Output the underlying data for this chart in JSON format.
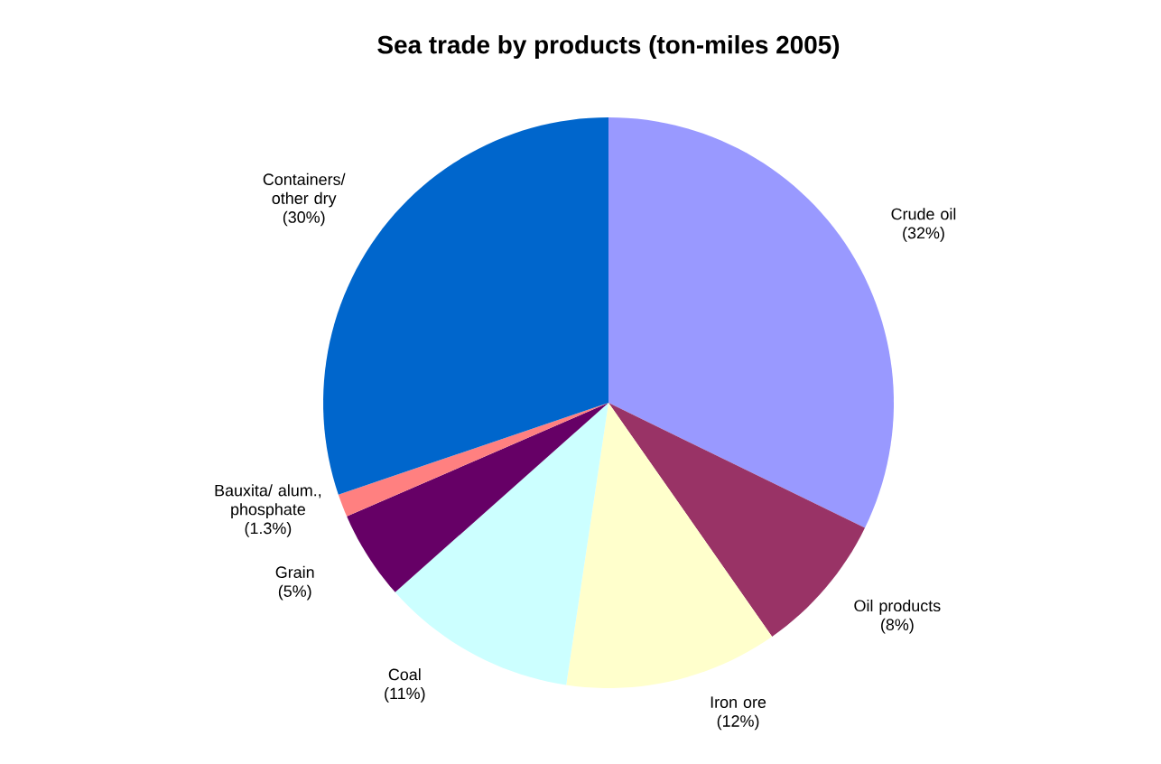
{
  "chart_data": {
    "type": "pie",
    "title": "Sea trade by products (ton-miles 2005)",
    "categories": [
      "Crude oil",
      "Oil products",
      "Iron ore",
      "Coal",
      "Grain",
      "Bauxita/ alum., phosphate",
      "Containers/ other dry"
    ],
    "values": [
      32,
      8,
      12,
      11,
      5,
      1.3,
      30
    ],
    "colors": [
      "#9999ff",
      "#993366",
      "#ffffcc",
      "#ccffff",
      "#660066",
      "#ff8080",
      "#0066cc"
    ],
    "value_labels": [
      "(32%)",
      "(8%)",
      "(12%)",
      "(11%)",
      "(5%)",
      "(1.3%)",
      "(30%)"
    ]
  }
}
